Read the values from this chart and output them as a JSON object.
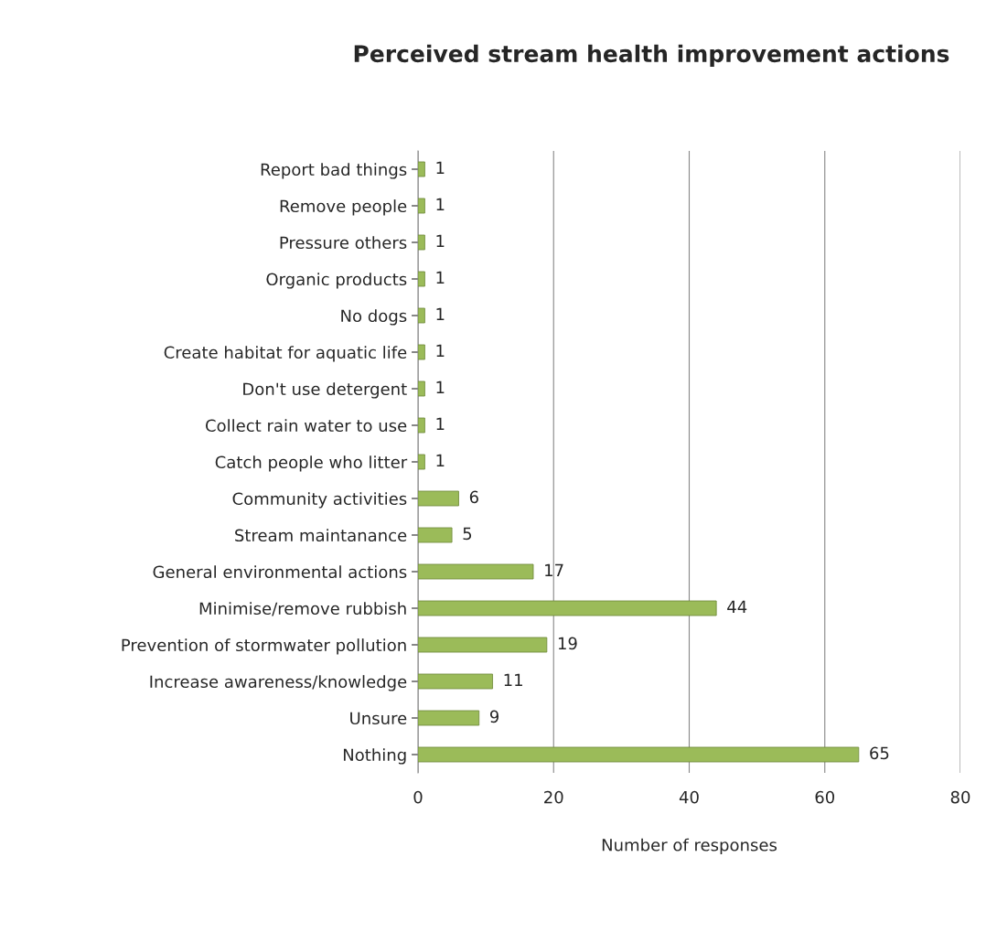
{
  "chart_data": {
    "type": "bar",
    "orientation": "horizontal",
    "title": "Perceived stream health improvement actions",
    "xlabel": "Number of responses",
    "categories": [
      "Report bad things",
      "Remove people",
      "Pressure others",
      "Organic products",
      "No dogs",
      "Create habitat for aquatic life",
      "Don't use detergent",
      "Collect rain water to use",
      "Catch people who litter",
      "Community activities",
      "Stream maintanance",
      "General environmental actions",
      "Minimise/remove rubbish",
      "Prevention of stormwater pollution",
      "Increase awareness/knowledge",
      "Unsure",
      "Nothing"
    ],
    "values": [
      1,
      1,
      1,
      1,
      1,
      1,
      1,
      1,
      1,
      6,
      5,
      17,
      44,
      19,
      11,
      9,
      65
    ],
    "color": "#9bbb59",
    "xlim": [
      0,
      80
    ],
    "xticks": [
      0,
      20,
      40,
      60,
      80
    ],
    "grid": "x",
    "data_labels": true,
    "legend": false
  }
}
